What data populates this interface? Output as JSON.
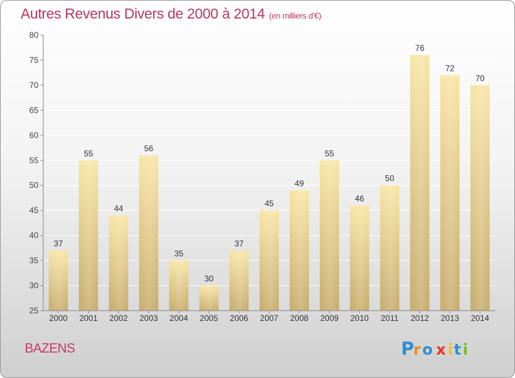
{
  "header": {
    "title": "Autres Revenus Divers de 2000 à 2014",
    "subtitle": "(en milliers d'€)"
  },
  "footer": {
    "location": "BAZENS",
    "logo_text": "Proxiti"
  },
  "colors": {
    "title": "#b8365f",
    "bar_light": "#f7e3a2",
    "bar_dark": "#c7ad6c",
    "axis": "#888888",
    "grid": "#ffffff"
  },
  "chart_data": {
    "type": "bar",
    "title": "Autres Revenus Divers de 2000 à 2014",
    "subtitle": "(en milliers d'€)",
    "categories": [
      "2000",
      "2001",
      "2002",
      "2003",
      "2004",
      "2005",
      "2006",
      "2007",
      "2008",
      "2009",
      "2010",
      "2011",
      "2012",
      "2013",
      "2014"
    ],
    "values": [
      37,
      55,
      44,
      56,
      35,
      30,
      37,
      45,
      49,
      55,
      46,
      50,
      76,
      72,
      70
    ],
    "ylim": [
      25,
      80
    ],
    "yticks": [
      25,
      30,
      35,
      40,
      45,
      50,
      55,
      60,
      65,
      70,
      75,
      80
    ],
    "xlabel": "",
    "ylabel": "",
    "grid": true,
    "data_labels": true
  }
}
